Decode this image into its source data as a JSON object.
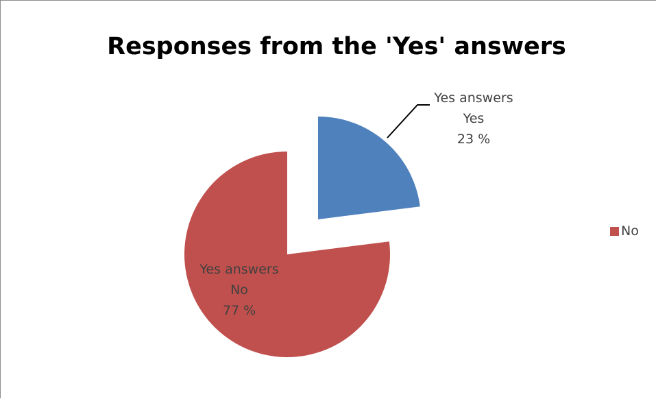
{
  "chart_data": {
    "type": "pie",
    "title": "Responses from the 'Yes' answers",
    "series": [
      {
        "name": "Yes answers",
        "categories": [
          "Yes",
          "No"
        ],
        "values": [
          23,
          77
        ],
        "value_labels": [
          "23 %",
          "77 %"
        ],
        "colors": [
          "#4f81bd",
          "#c0504d"
        ],
        "exploded": [
          true,
          false
        ]
      }
    ],
    "legend": {
      "placement": "right",
      "entries": [
        {
          "label": "No",
          "color": "#c0504d"
        }
      ]
    }
  }
}
